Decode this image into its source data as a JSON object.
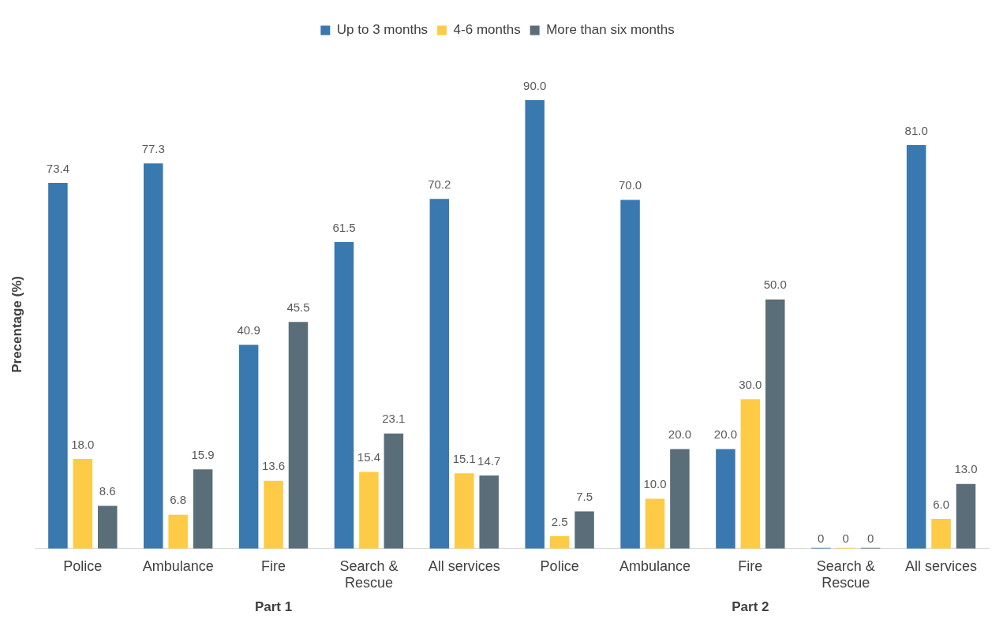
{
  "chart_data": {
    "type": "bar",
    "ylabel": "Precentage (%)",
    "legend": "top",
    "categories": [
      "Police",
      "Ambulance",
      "Fire",
      "Search & Rescue",
      "All services",
      "Police",
      "Ambulance",
      "Fire",
      "Search & Rescue",
      "All services"
    ],
    "series": [
      {
        "name": "Up to 3 months",
        "color": "#3a78b0",
        "values": [
          73.4,
          77.3,
          40.9,
          61.5,
          70.2,
          90.0,
          70.0,
          20.0,
          0,
          81.0
        ],
        "value_labels": [
          "73.4",
          "77.3",
          "40.9",
          "61.5",
          "70.2",
          "90.0",
          "70.0",
          "20.0",
          "0",
          "81.0"
        ]
      },
      {
        "name": "4-6 months",
        "color": "#fdcb45",
        "values": [
          18.0,
          6.8,
          13.6,
          15.4,
          15.1,
          2.5,
          10.0,
          30.0,
          0,
          6.0
        ],
        "value_labels": [
          "18.0",
          "6.8",
          "13.6",
          "15.4",
          "15.1",
          "2.5",
          "10.0",
          "30.0",
          "0",
          "6.0"
        ]
      },
      {
        "name": "More than six months",
        "color": "#5a6e7a",
        "values": [
          8.6,
          15.9,
          45.5,
          23.1,
          14.7,
          7.5,
          20.0,
          50.0,
          0,
          13.0
        ],
        "value_labels": [
          "8.6",
          "15.9",
          "45.5",
          "23.1",
          "14.7",
          "7.5",
          "20.0",
          "50.0",
          "0",
          "13.0"
        ]
      }
    ],
    "annotations": [
      "Part 1",
      "Part 2"
    ]
  }
}
